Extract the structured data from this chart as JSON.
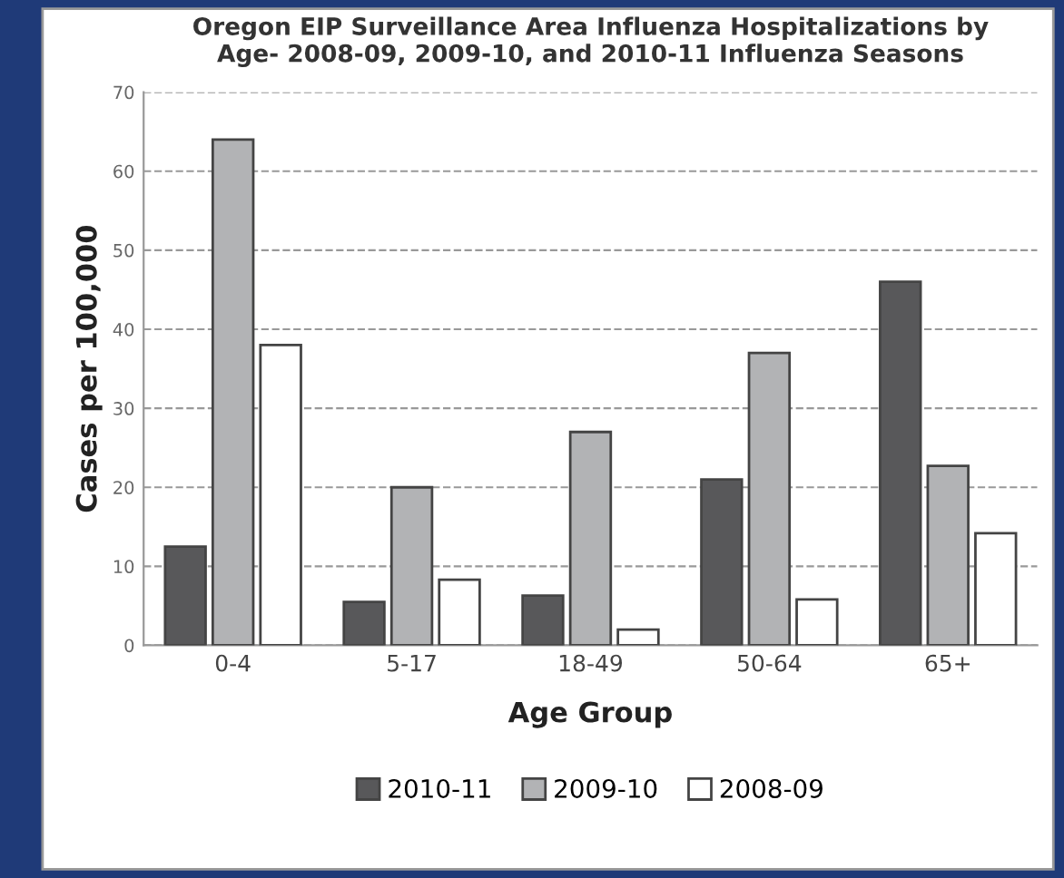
{
  "chart_data": {
    "type": "bar",
    "title": "Oregon EIP Surveillance Area Influenza Hospitalizations by\nAge- 2008-09, 2009-10, and 2010-11 Influenza Seasons",
    "xlabel": "Age Group",
    "ylabel": "Cases per 100,000",
    "categories": [
      "0-4",
      "5-17",
      "18-49",
      "50-64",
      "65+"
    ],
    "series": [
      {
        "name": "2010-11",
        "color": "#58585a",
        "values": [
          12.5,
          5.5,
          6.3,
          21,
          46
        ]
      },
      {
        "name": "2009-10",
        "color": "#b2b3b5",
        "values": [
          64,
          20,
          27,
          37,
          22.7
        ]
      },
      {
        "name": "2008-09",
        "color": "#ffffff",
        "values": [
          38,
          8.3,
          2,
          5.8,
          14.2
        ]
      }
    ],
    "ylim": [
      0,
      70
    ],
    "yticks": [
      0,
      10,
      20,
      30,
      40,
      50,
      60,
      70
    ],
    "grid": "y",
    "legend": "bottom"
  }
}
